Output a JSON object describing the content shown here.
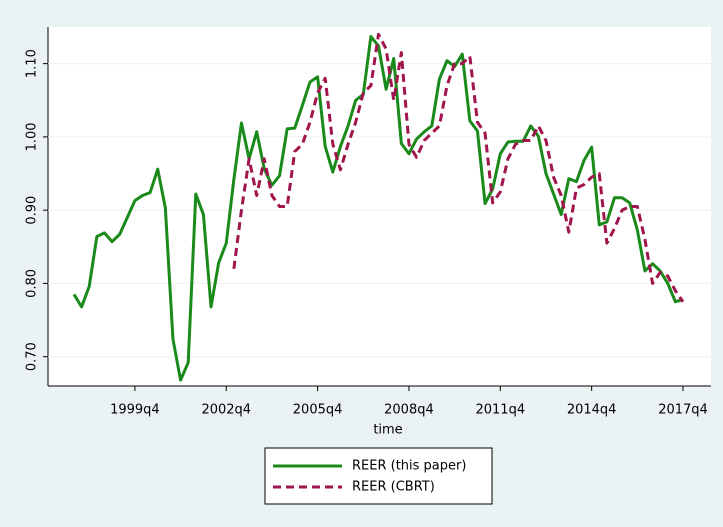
{
  "chart_data": {
    "type": "line",
    "x_label": "time",
    "x": [
      "1997q4",
      "1998q1",
      "1998q2",
      "1998q3",
      "1998q4",
      "1999q1",
      "1999q2",
      "1999q3",
      "1999q4",
      "2000q1",
      "2000q2",
      "2000q3",
      "2000q4",
      "2001q1",
      "2001q2",
      "2001q3",
      "2001q4",
      "2002q1",
      "2002q2",
      "2002q3",
      "2002q4",
      "2003q1",
      "2003q2",
      "2003q3",
      "2003q4",
      "2004q1",
      "2004q2",
      "2004q3",
      "2004q4",
      "2005q1",
      "2005q2",
      "2005q3",
      "2005q4",
      "2006q1",
      "2006q2",
      "2006q3",
      "2006q4",
      "2007q1",
      "2007q2",
      "2007q3",
      "2007q4",
      "2008q1",
      "2008q2",
      "2008q3",
      "2008q4",
      "2009q1",
      "2009q2",
      "2009q3",
      "2009q4",
      "2010q1",
      "2010q2",
      "2010q3",
      "2010q4",
      "2011q1",
      "2011q2",
      "2011q3",
      "2011q4",
      "2012q1",
      "2012q2",
      "2012q3",
      "2012q4",
      "2013q1",
      "2013q2",
      "2013q3",
      "2013q4",
      "2014q1",
      "2014q2",
      "2014q3",
      "2014q4",
      "2015q1",
      "2015q2",
      "2015q3",
      "2015q4",
      "2016q1",
      "2016q2",
      "2016q3",
      "2016q4",
      "2017q1",
      "2017q2",
      "2017q3",
      "2017q4"
    ],
    "xticks": [
      "1999q4",
      "2002q4",
      "2005q4",
      "2008q4",
      "2011q4",
      "2014q4",
      "2017q4"
    ],
    "ylim": [
      0.66,
      1.15
    ],
    "yticks": [
      {
        "value": 0.7,
        "label": "0.70"
      },
      {
        "value": 0.8,
        "label": "0.80"
      },
      {
        "value": 0.9,
        "label": "0.90"
      },
      {
        "value": 1.0,
        "label": "1.00"
      },
      {
        "value": 1.1,
        "label": "1.10"
      }
    ],
    "grid": true,
    "legend": "bottom",
    "series": [
      {
        "name": "REER (this paper)",
        "color": "#1a8a1a",
        "dash": false,
        "values": [
          0.785,
          0.768,
          0.796,
          0.864,
          0.869,
          0.857,
          0.867,
          0.89,
          0.913,
          0.92,
          0.924,
          0.956,
          0.903,
          0.724,
          0.668,
          0.692,
          0.922,
          0.894,
          0.768,
          0.828,
          0.855,
          0.942,
          1.019,
          0.97,
          1.007,
          0.956,
          0.934,
          0.947,
          1.011,
          1.012,
          1.043,
          1.075,
          1.082,
          0.987,
          0.952,
          0.987,
          1.015,
          1.05,
          1.058,
          1.137,
          1.124,
          1.065,
          1.107,
          0.991,
          0.977,
          0.997,
          1.007,
          1.015,
          1.079,
          1.104,
          1.096,
          1.113,
          1.022,
          1.008,
          0.909,
          0.929,
          0.977,
          0.993,
          0.994,
          0.994,
          1.015,
          1.001,
          0.95,
          0.922,
          0.894,
          0.943,
          0.939,
          0.968,
          0.986,
          0.88,
          0.884,
          0.917,
          0.917,
          0.91,
          0.873,
          0.817,
          0.827,
          0.817,
          0.8,
          0.775,
          0.778
        ]
      },
      {
        "name": "REER (CBRT)",
        "color": "#a0154d",
        "dash": true,
        "values": [
          null,
          null,
          null,
          null,
          null,
          null,
          null,
          null,
          null,
          null,
          null,
          null,
          null,
          null,
          null,
          null,
          null,
          null,
          null,
          null,
          null,
          0.82,
          0.9,
          0.97,
          0.92,
          0.97,
          0.92,
          0.905,
          0.905,
          0.98,
          0.99,
          1.02,
          1.06,
          1.08,
          0.99,
          0.955,
          0.99,
          1.02,
          1.06,
          1.07,
          1.14,
          1.12,
          1.05,
          1.115,
          0.99,
          0.972,
          0.995,
          1.005,
          1.015,
          1.07,
          1.1,
          1.1,
          1.11,
          1.02,
          1.005,
          0.91,
          0.925,
          0.97,
          0.99,
          0.995,
          0.995,
          1.015,
          0.995,
          0.945,
          0.92,
          0.87,
          0.93,
          0.935,
          0.945,
          0.95,
          0.855,
          0.875,
          0.9,
          0.905,
          0.905,
          0.86,
          0.8,
          0.815,
          0.81,
          0.79,
          0.775
        ]
      }
    ]
  }
}
